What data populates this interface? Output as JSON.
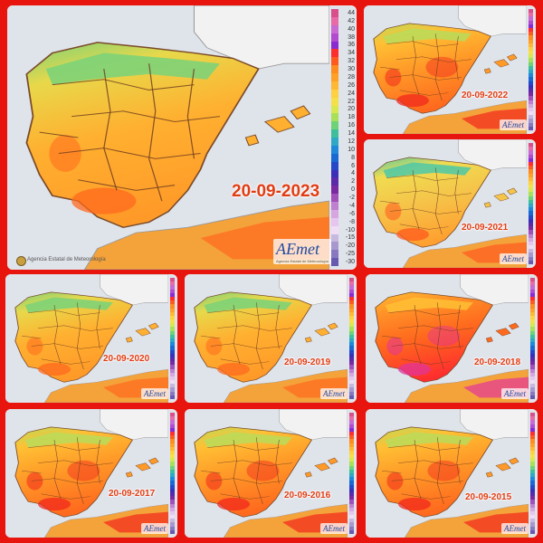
{
  "collage": {
    "background": "#e8140e",
    "panels": [
      {
        "id": "2023",
        "date": "20-09-2023",
        "credit": "Agencia Estatal de Meteorología",
        "logo": "AEmet",
        "logo_sub": "Agencia Estatal de Meteorología",
        "legend_labels": [
          "44",
          "42",
          "40",
          "38",
          "36",
          "34",
          "32",
          "30",
          "28",
          "26",
          "24",
          "22",
          "20",
          "18",
          "16",
          "14",
          "12",
          "10",
          "8",
          "6",
          "4",
          "2",
          "0",
          "-2",
          "-4",
          "-6",
          "-8",
          "-10",
          "-15",
          "-20",
          "-25",
          "-30"
        ],
        "heat": "mild"
      },
      {
        "id": "2022",
        "date": "20-09-2022",
        "logo": "AEmet",
        "heat": "hot"
      },
      {
        "id": "2021",
        "date": "20-09-2021",
        "logo": "AEmet",
        "heat": "cool"
      },
      {
        "id": "2020",
        "date": "20-09-2020",
        "logo": "AEmet",
        "heat": "mild"
      },
      {
        "id": "2019",
        "date": "20-09-2019",
        "logo": "AEmet",
        "heat": "mild"
      },
      {
        "id": "2018",
        "date": "20-09-2018",
        "logo": "AEmet",
        "heat": "extreme"
      },
      {
        "id": "2017",
        "date": "20-09-2017",
        "logo": "AEmet",
        "heat": "hot"
      },
      {
        "id": "2016",
        "date": "20-09-2016",
        "logo": "AEmet",
        "heat": "hot"
      },
      {
        "id": "2015",
        "date": "20-09-2015",
        "logo": "AEmet",
        "heat": "hot"
      }
    ]
  },
  "colors": {
    "sea": "#dfe3ea",
    "france": "#f2f2f2",
    "africa": "#f4a23a",
    "border": "#6b3a1f",
    "date_text": "#e23c12",
    "legend_ramp": [
      "#d94f8a",
      "#e86aa6",
      "#c86ad0",
      "#b24ad0",
      "#8a2bd1",
      "#ff2e2e",
      "#ff5a1e",
      "#ff8c1e",
      "#ffa126",
      "#ffb834",
      "#ffd040",
      "#f5e04a",
      "#d8e84e",
      "#a9e05a",
      "#6fd276",
      "#3fbe9c",
      "#2fa8c6",
      "#1f88d8",
      "#1a68d2",
      "#2448c8",
      "#3a30b8",
      "#5a2aa8",
      "#7a2aa0",
      "#a050b8",
      "#c080d0",
      "#d6a6e0",
      "#e6c6ee",
      "#f0dcf4",
      "#c8b8e0",
      "#a898d0",
      "#8878c0",
      "#6858b0"
    ]
  }
}
